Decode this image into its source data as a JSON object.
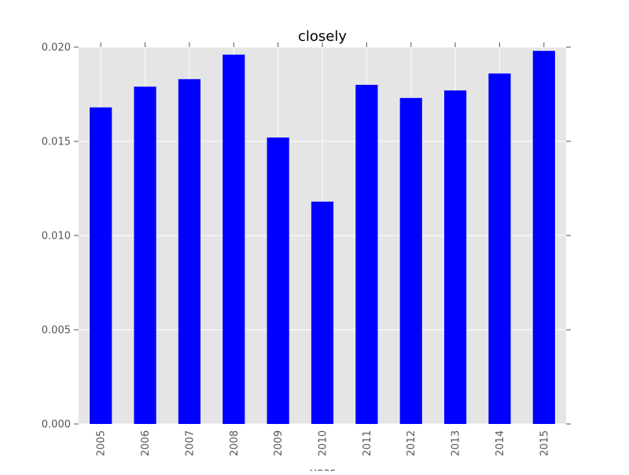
{
  "chart_data": {
    "type": "bar",
    "title": "closely",
    "xlabel": "year",
    "ylabel": "",
    "categories": [
      "2005",
      "2006",
      "2007",
      "2008",
      "2009",
      "2010",
      "2011",
      "2012",
      "2013",
      "2014",
      "2015"
    ],
    "values": [
      0.0168,
      0.0179,
      0.0183,
      0.0196,
      0.0152,
      0.0118,
      0.018,
      0.0173,
      0.0177,
      0.0186,
      0.0198
    ],
    "ylim": [
      0.0,
      0.02
    ],
    "yticks": [
      "0.000",
      "0.005",
      "0.010",
      "0.015",
      "0.020"
    ],
    "grid": true,
    "legend": "none",
    "colors": {
      "bar": "#0000ff",
      "plot_background": "#e5e5e5",
      "grid": "#ffffff"
    }
  }
}
